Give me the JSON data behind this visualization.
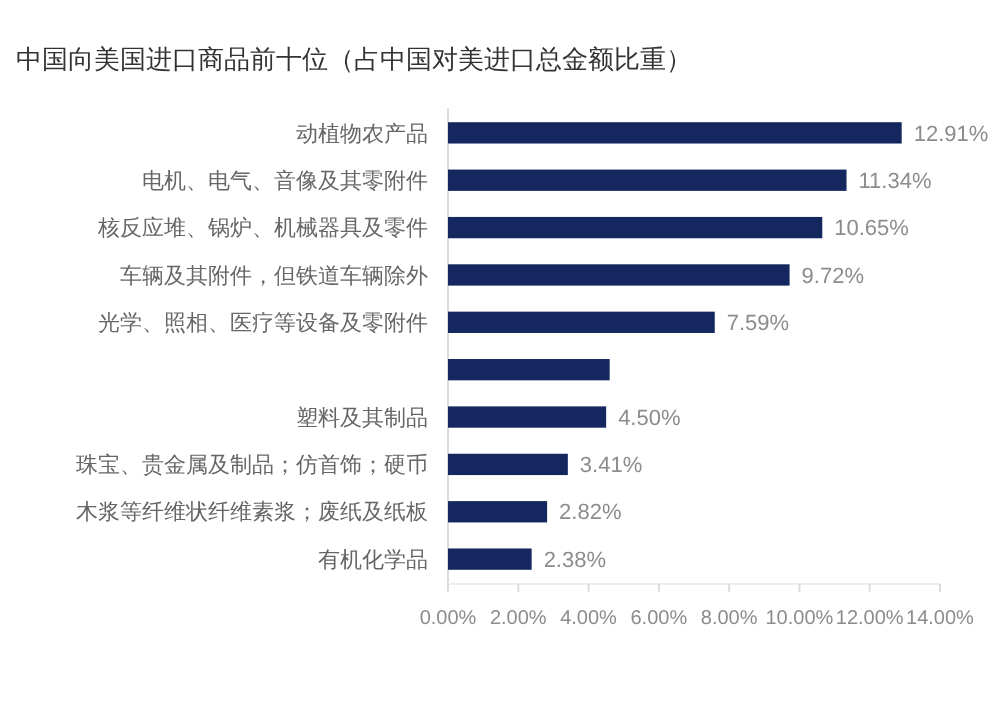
{
  "chart_data": {
    "type": "bar",
    "orientation": "horizontal",
    "title": "中国向美国进口商品前十位（占中国对美进口总金额比重）",
    "categories": [
      "动植物农产品",
      "电机、电气、音像及其零附件",
      "核反应堆、锅炉、机械器具及零件",
      "车辆及其附件，但铁道车辆除外",
      "光学、照相、医疗等设备及零附件",
      null,
      "塑料及其制品",
      "珠宝、贵金属及制品；仿首饰；硬币",
      "木浆等纤维状纤维素浆；废纸及纸板",
      "有机化学品"
    ],
    "values": [
      12.91,
      11.34,
      10.65,
      9.72,
      7.59,
      4.6,
      4.5,
      3.41,
      2.82,
      2.38
    ],
    "value_labels": [
      "12.91%",
      "11.34%",
      "10.65%",
      "9.72%",
      "7.59%",
      null,
      "4.50%",
      "3.41%",
      "2.82%",
      "2.38%"
    ],
    "color": "#14275e",
    "xlim": [
      0,
      14
    ],
    "xticks": [
      {
        "value": 0,
        "label": "0.00%"
      },
      {
        "value": 2,
        "label": "2.00%"
      },
      {
        "value": 4,
        "label": "4.00%"
      },
      {
        "value": 6,
        "label": "6.00%"
      },
      {
        "value": 8,
        "label": "8.00%"
      },
      {
        "value": 10,
        "label": "10.00%"
      },
      {
        "value": 12,
        "label": "12.00%"
      },
      {
        "value": 14,
        "label": "14.00%"
      }
    ],
    "grid": false
  }
}
